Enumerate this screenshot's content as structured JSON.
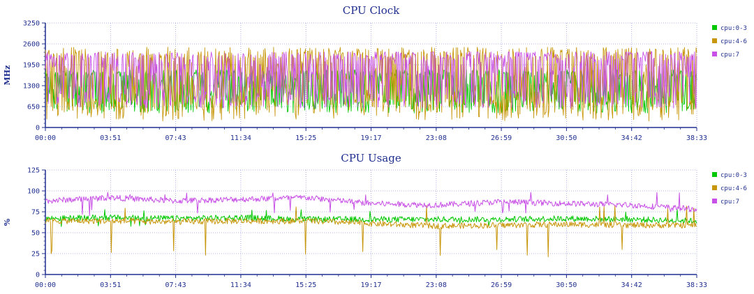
{
  "chart_data": [
    {
      "type": "line",
      "title": "CPU Clock",
      "ylabel": "MHz",
      "xlabel": "",
      "ylim": [
        0,
        3250
      ],
      "yticks": [
        0,
        650,
        1300,
        1950,
        2600,
        3250
      ],
      "xticks": [
        "00:00",
        "03:51",
        "07:43",
        "11:34",
        "15:25",
        "19:17",
        "23:08",
        "26:59",
        "30:50",
        "34:42",
        "38:33"
      ],
      "x_range_seconds": [
        0,
        2313
      ],
      "grid": true,
      "legend_position": "right",
      "series": [
        {
          "name": "cpu:0-3",
          "color": "#00c800",
          "base": [
            1300,
            1250,
            1200,
            1250,
            1250,
            1200,
            1200,
            1200,
            1200,
            1250,
            1250
          ],
          "low": 450,
          "high": 1800
        },
        {
          "name": "cpu:4-6",
          "color": "#c8960a",
          "base": [
            1400,
            1450,
            1400,
            1500,
            1500,
            1350,
            1300,
            1350,
            1300,
            1300,
            1300
          ],
          "low": 200,
          "high": 2500
        },
        {
          "name": "cpu:7",
          "color": "#c850e6",
          "base": [
            1800,
            1700,
            1650,
            1600,
            1700,
            2100,
            2100,
            2100,
            2050,
            2050,
            2050
          ],
          "low": 600,
          "high": 2350
        }
      ]
    },
    {
      "type": "line",
      "title": "CPU Usage",
      "ylabel": "%",
      "xlabel": "",
      "ylim": [
        0,
        125
      ],
      "yticks": [
        0,
        25,
        50,
        75,
        100,
        125
      ],
      "xticks": [
        "00:00",
        "03:51",
        "07:43",
        "11:34",
        "15:25",
        "19:17",
        "23:08",
        "26:59",
        "30:50",
        "34:42",
        "38:33"
      ],
      "x_range_seconds": [
        0,
        2313
      ],
      "grid": true,
      "legend_position": "right",
      "series": [
        {
          "name": "cpu:0-3",
          "color": "#00c800",
          "base": [
            67,
            68,
            67,
            68,
            66,
            66,
            66,
            66,
            67,
            66,
            64
          ],
          "low": 55,
          "high": 78
        },
        {
          "name": "cpu:4-6",
          "color": "#c8960a",
          "base": [
            64,
            64,
            63,
            64,
            64,
            61,
            58,
            59,
            60,
            59,
            59
          ],
          "low": 20,
          "high": 83
        },
        {
          "name": "cpu:7",
          "color": "#c850e6",
          "base": [
            88,
            92,
            88,
            90,
            92,
            85,
            83,
            87,
            85,
            83,
            78
          ],
          "low": 70,
          "high": 99
        }
      ]
    }
  ]
}
